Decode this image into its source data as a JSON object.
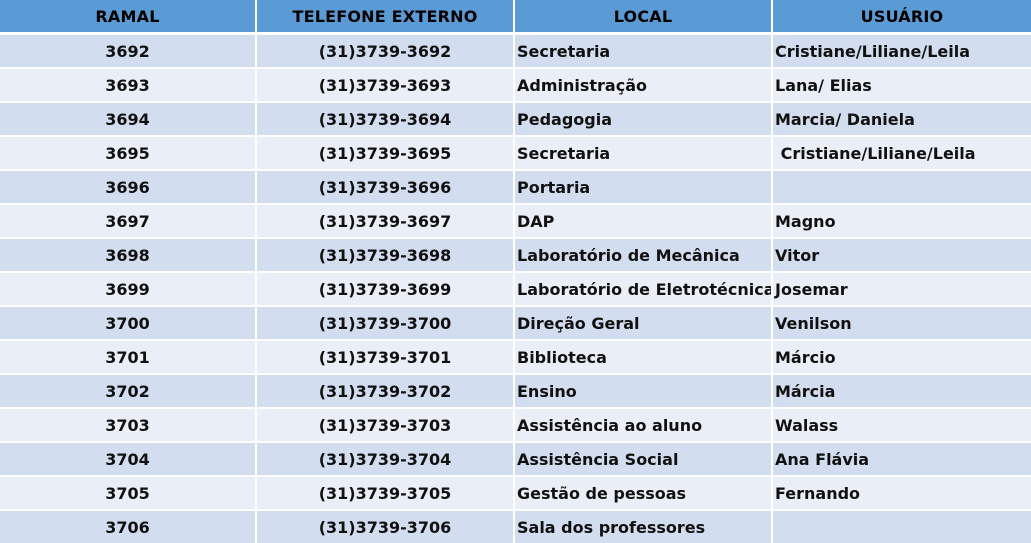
{
  "colors": {
    "header": "#5B9BD5",
    "row_odd": "#D2DEEF",
    "row_even": "#EAEFF7"
  },
  "headers": [
    "RAMAL",
    "TELEFONE EXTERNO",
    "LOCAL",
    "USUÁRIO"
  ],
  "rows": [
    [
      "3692",
      "(31)3739-3692",
      "Secretaria",
      "Cristiane/Liliane/Leila"
    ],
    [
      "3693",
      "(31)3739-3693",
      "Administração",
      "Lana/ Elias"
    ],
    [
      "3694",
      "(31)3739-3694",
      "Pedagogia",
      "Marcia/ Daniela"
    ],
    [
      "3695",
      "(31)3739-3695",
      "Secretaria",
      " Cristiane/Liliane/Leila"
    ],
    [
      "3696",
      "(31)3739-3696",
      "Portaria",
      ""
    ],
    [
      "3697",
      "(31)3739-3697",
      "DAP",
      "Magno"
    ],
    [
      "3698",
      "(31)3739-3698",
      "Laboratório de Mecânica",
      "Vitor"
    ],
    [
      "3699",
      "(31)3739-3699",
      "Laboratório de Eletrotécnica",
      "Josemar"
    ],
    [
      "3700",
      "(31)3739-3700",
      "Direção Geral",
      "Venilson"
    ],
    [
      "3701",
      "(31)3739-3701",
      "Biblioteca",
      "Márcio"
    ],
    [
      "3702",
      "(31)3739-3702",
      "Ensino",
      "Márcia"
    ],
    [
      "3703",
      "(31)3739-3703",
      "Assistência ao aluno",
      "Walass"
    ],
    [
      "3704",
      "(31)3739-3704",
      "Assistência Social",
      "Ana Flávia"
    ],
    [
      "3705",
      "(31)3739-3705",
      "Gestão de pessoas",
      "Fernando"
    ],
    [
      "3706",
      "(31)3739-3706",
      "Sala dos professores",
      ""
    ]
  ]
}
